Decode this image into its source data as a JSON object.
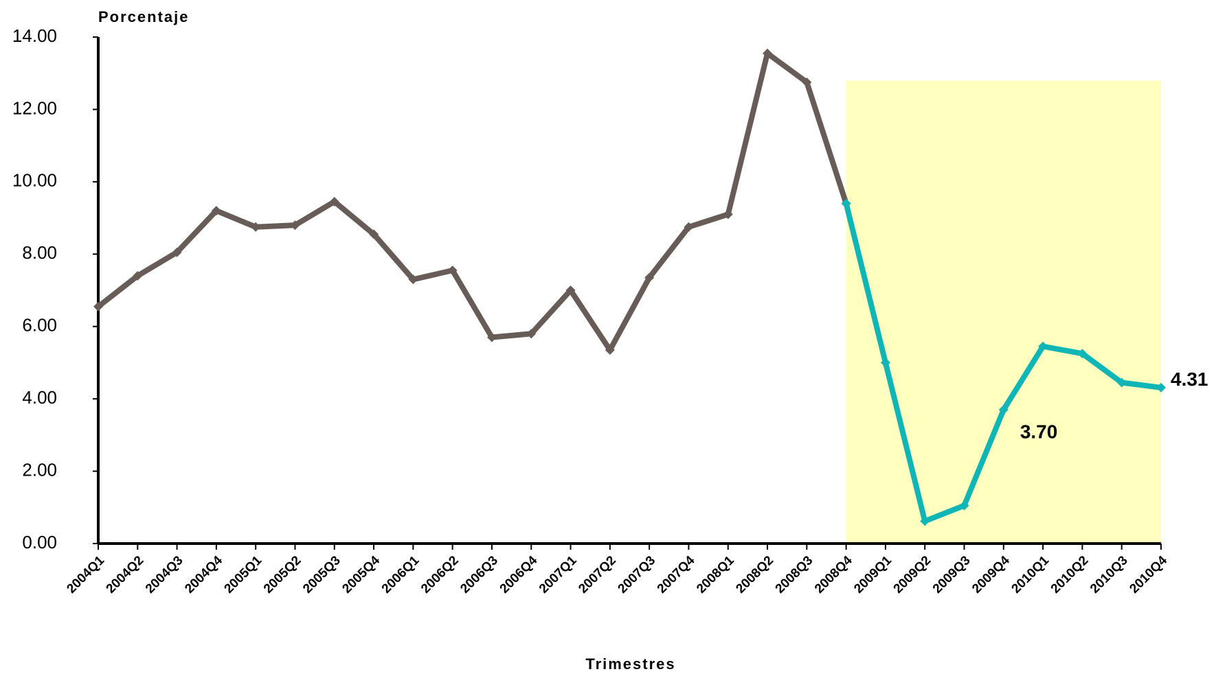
{
  "chart_data": {
    "type": "line",
    "y_label": "Porcentaje",
    "x_label": "Trimestres",
    "categories": [
      "2004Q1",
      "2004Q2",
      "2004Q3",
      "2004Q4",
      "2005Q1",
      "2005Q2",
      "2005Q3",
      "2005Q4",
      "2006Q1",
      "2006Q2",
      "2006Q3",
      "2006Q4",
      "2007Q1",
      "2007Q2",
      "2007Q3",
      "2007Q4",
      "2008Q1",
      "2008Q2",
      "2008Q3",
      "2008Q4",
      "2009Q1",
      "2009Q2",
      "2009Q3",
      "2009Q4",
      "2010Q1",
      "2010Q2",
      "2010Q3",
      "2010Q4"
    ],
    "category_label_colors": [
      "#000",
      "#000",
      "#000",
      "#000",
      "#000",
      "#000",
      "#000",
      "#000",
      "#000",
      "#000",
      "#000",
      "#000",
      "#000",
      "#000",
      "#000",
      "#000",
      "#000",
      "#000",
      "#000",
      "#000",
      "#000",
      "#000",
      "#000",
      "#ff0000",
      "#000",
      "#000",
      "#000",
      "#ff0000"
    ],
    "series": [
      {
        "color": "#675c57",
        "values": [
          6.55,
          7.4,
          8.05,
          9.2,
          8.75,
          8.8,
          9.45,
          8.55,
          7.3,
          7.55,
          5.7,
          5.8,
          7.0,
          5.35,
          7.35,
          8.75,
          9.1,
          13.55,
          12.75,
          9.4,
          null,
          null,
          null,
          null,
          null,
          null,
          null,
          null
        ]
      },
      {
        "color": "#10b5b5",
        "values": [
          null,
          null,
          null,
          null,
          null,
          null,
          null,
          null,
          null,
          null,
          null,
          null,
          null,
          null,
          null,
          null,
          null,
          null,
          null,
          9.4,
          5.0,
          0.62,
          1.05,
          3.7,
          5.45,
          5.25,
          4.45,
          4.31
        ],
        "value_labels": [
          null,
          null,
          null,
          null,
          null,
          null,
          null,
          null,
          null,
          null,
          null,
          null,
          null,
          null,
          null,
          null,
          null,
          null,
          null,
          null,
          null,
          null,
          null,
          "3.70",
          null,
          null,
          null,
          "4.31"
        ]
      }
    ],
    "highlight": {
      "from": "2008Q4",
      "to": "2010Q4",
      "top": 12.8,
      "color": "#ffffc0"
    },
    "ylim": [
      0,
      14
    ],
    "yticks": [
      {
        "value": 0,
        "label": "0.00"
      },
      {
        "value": 2,
        "label": "2.00"
      },
      {
        "value": 4,
        "label": "4.00"
      },
      {
        "value": 6,
        "label": "6.00"
      },
      {
        "value": 8,
        "label": "8.00"
      },
      {
        "value": 10,
        "label": "10.00"
      },
      {
        "value": 12,
        "label": "12.00"
      },
      {
        "value": 14,
        "label": "14.00"
      }
    ]
  }
}
